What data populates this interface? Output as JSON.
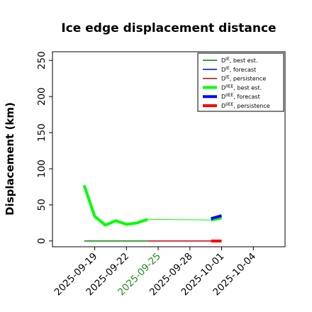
{
  "chart_data": {
    "type": "line",
    "title": "Ice edge displacement distance",
    "ylabel": "Displacement (km)",
    "xlabel": "",
    "ylim": [
      -8,
      262
    ],
    "xlim": [
      "2025-09-15",
      "2025-10-07"
    ],
    "yticks": [
      0,
      50,
      100,
      150,
      200,
      250
    ],
    "xticks": [
      {
        "date": "2025-09-19",
        "label": "2025-09-19",
        "color": "#000000"
      },
      {
        "date": "2025-09-22",
        "label": "2025-09-22",
        "color": "#000000"
      },
      {
        "date": "2025-09-25",
        "label": "2025-09-25",
        "color": "#228B22"
      },
      {
        "date": "2025-09-28",
        "label": "2025-09-28",
        "color": "#000000"
      },
      {
        "date": "2025-10-01",
        "label": "2025-10-01",
        "color": "#000000"
      },
      {
        "date": "2025-10-04",
        "label": "2025-10-04",
        "color": "#000000"
      }
    ],
    "legend_position": "top-right",
    "legend": [
      {
        "prefix": "D",
        "sup": "IE",
        "suffix": ", best est.",
        "color": "#008000",
        "width": 1.5
      },
      {
        "prefix": "D",
        "sup": "IE",
        "suffix": ", forecast",
        "color": "#0000ff",
        "width": 1.5
      },
      {
        "prefix": "D",
        "sup": "IE",
        "suffix": ", persistence",
        "color": "#c00000",
        "width": 1.5
      },
      {
        "prefix": "D",
        "sup": "IIEE",
        "suffix": ", best est.",
        "color": "#00ff00",
        "width": 4
      },
      {
        "prefix": "D",
        "sup": "IIEE",
        "suffix": ", forecast",
        "color": "#0000ff",
        "width": 4
      },
      {
        "prefix": "D",
        "sup": "IIEE",
        "suffix": ", persistence",
        "color": "#ff0000",
        "width": 4
      }
    ],
    "series": [
      {
        "key": "die_best",
        "color": "#008000",
        "width": 1.5,
        "points": [
          [
            "2025-09-18",
            0
          ],
          [
            "2025-09-19",
            0
          ],
          [
            "2025-09-20",
            0
          ],
          [
            "2025-09-21",
            0
          ],
          [
            "2025-09-22",
            0
          ],
          [
            "2025-09-23",
            0
          ],
          [
            "2025-09-24",
            0
          ]
        ]
      },
      {
        "key": "die_persistence",
        "color": "#c00000",
        "width": 1.5,
        "points": [
          [
            "2025-09-24",
            0
          ],
          [
            "2025-09-30",
            0
          ]
        ]
      },
      {
        "key": "diiee_best_connector",
        "color": "#00ff00",
        "width": 1,
        "points": [
          [
            "2025-09-24",
            30
          ],
          [
            "2025-09-30",
            29
          ]
        ]
      },
      {
        "key": "diiee_best",
        "color": "#00ff00",
        "width": 4,
        "points": [
          [
            "2025-09-18",
            77
          ],
          [
            "2025-09-19",
            34
          ],
          [
            "2025-09-20",
            22
          ],
          [
            "2025-09-21",
            28
          ],
          [
            "2025-09-22",
            23
          ],
          [
            "2025-09-23",
            25
          ],
          [
            "2025-09-24",
            30
          ]
        ]
      },
      {
        "key": "diiee_best_end",
        "color": "#00ff00",
        "width": 4,
        "points": [
          [
            "2025-09-30",
            29
          ],
          [
            "2025-10-01",
            32
          ]
        ]
      },
      {
        "key": "diiee_forecast",
        "color": "#0000ff",
        "width": 4,
        "points": [
          [
            "2025-09-30",
            31
          ],
          [
            "2025-10-01",
            35
          ]
        ]
      },
      {
        "key": "diiee_persistence",
        "color": "#ff0000",
        "width": 4,
        "points": [
          [
            "2025-09-30",
            0
          ],
          [
            "2025-10-01",
            0
          ]
        ]
      }
    ]
  }
}
